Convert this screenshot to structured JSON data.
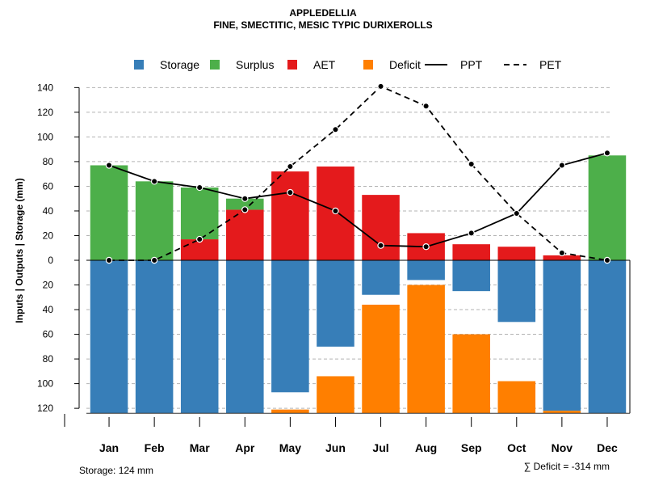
{
  "chart_data": {
    "type": "bar",
    "title": "APPLEDELLIA",
    "subtitle": "FINE, SMECTITIC, MESIC TYPIC DURIXEROLLS",
    "ylabel": "Inputs | Outputs | Storage    (mm)",
    "categories": [
      "Jan",
      "Feb",
      "Mar",
      "Apr",
      "May",
      "Jun",
      "Jul",
      "Aug",
      "Sep",
      "Oct",
      "Nov",
      "Dec"
    ],
    "ylim": [
      -124,
      140
    ],
    "yticks": [
      -120,
      -100,
      -80,
      -60,
      -40,
      -20,
      0,
      20,
      40,
      60,
      80,
      100,
      120,
      140
    ],
    "ytick_labels": [
      "120",
      "100",
      "80",
      "60",
      "40",
      "20",
      "0",
      "20",
      "40",
      "60",
      "80",
      "100",
      "120",
      "140"
    ],
    "legend": {
      "position": "top",
      "entries": [
        {
          "label": "Storage",
          "kind": "box",
          "color": "#377EB8"
        },
        {
          "label": "Surplus",
          "kind": "box",
          "color": "#4DAF4A"
        },
        {
          "label": "AET",
          "kind": "box",
          "color": "#E41A1C"
        },
        {
          "label": "Deficit",
          "kind": "box",
          "color": "#FF7F00"
        },
        {
          "label": "PPT",
          "kind": "solid-line",
          "color": "#000000"
        },
        {
          "label": "PET",
          "kind": "dashed-line",
          "color": "#000000"
        }
      ]
    },
    "series": [
      {
        "name": "AET",
        "color": "#E41A1C",
        "values": [
          0,
          0,
          17,
          41,
          72,
          76,
          53,
          22,
          13,
          11,
          4,
          0
        ]
      },
      {
        "name": "Surplus",
        "color": "#4DAF4A",
        "values": [
          77,
          64,
          42,
          9,
          0,
          0,
          0,
          0,
          0,
          0,
          0,
          85
        ]
      },
      {
        "name": "Storage",
        "color": "#377EB8",
        "values": [
          124,
          124,
          124,
          124,
          107,
          70,
          28,
          16,
          25,
          50,
          122,
          124
        ]
      },
      {
        "name": "Deficit",
        "color": "#FF7F00",
        "values": [
          0,
          0,
          0,
          0,
          3,
          30,
          88,
          104,
          64,
          26,
          2,
          0
        ]
      },
      {
        "name": "PPT",
        "color": "#000000",
        "style": "solid",
        "values": [
          77,
          64,
          59,
          50,
          55,
          40,
          12,
          11,
          22,
          38,
          77,
          87
        ]
      },
      {
        "name": "PET",
        "color": "#000000",
        "style": "dashed",
        "values": [
          0,
          0,
          17,
          41,
          76,
          106,
          141,
          125,
          78,
          38,
          6,
          0
        ]
      }
    ],
    "storage_capacity": 124,
    "deficit_sum": -314,
    "grid": true
  },
  "footer": {
    "storage_text": "Storage: 124 mm",
    "deficit_text": "∑ Deficit = -314 mm"
  }
}
